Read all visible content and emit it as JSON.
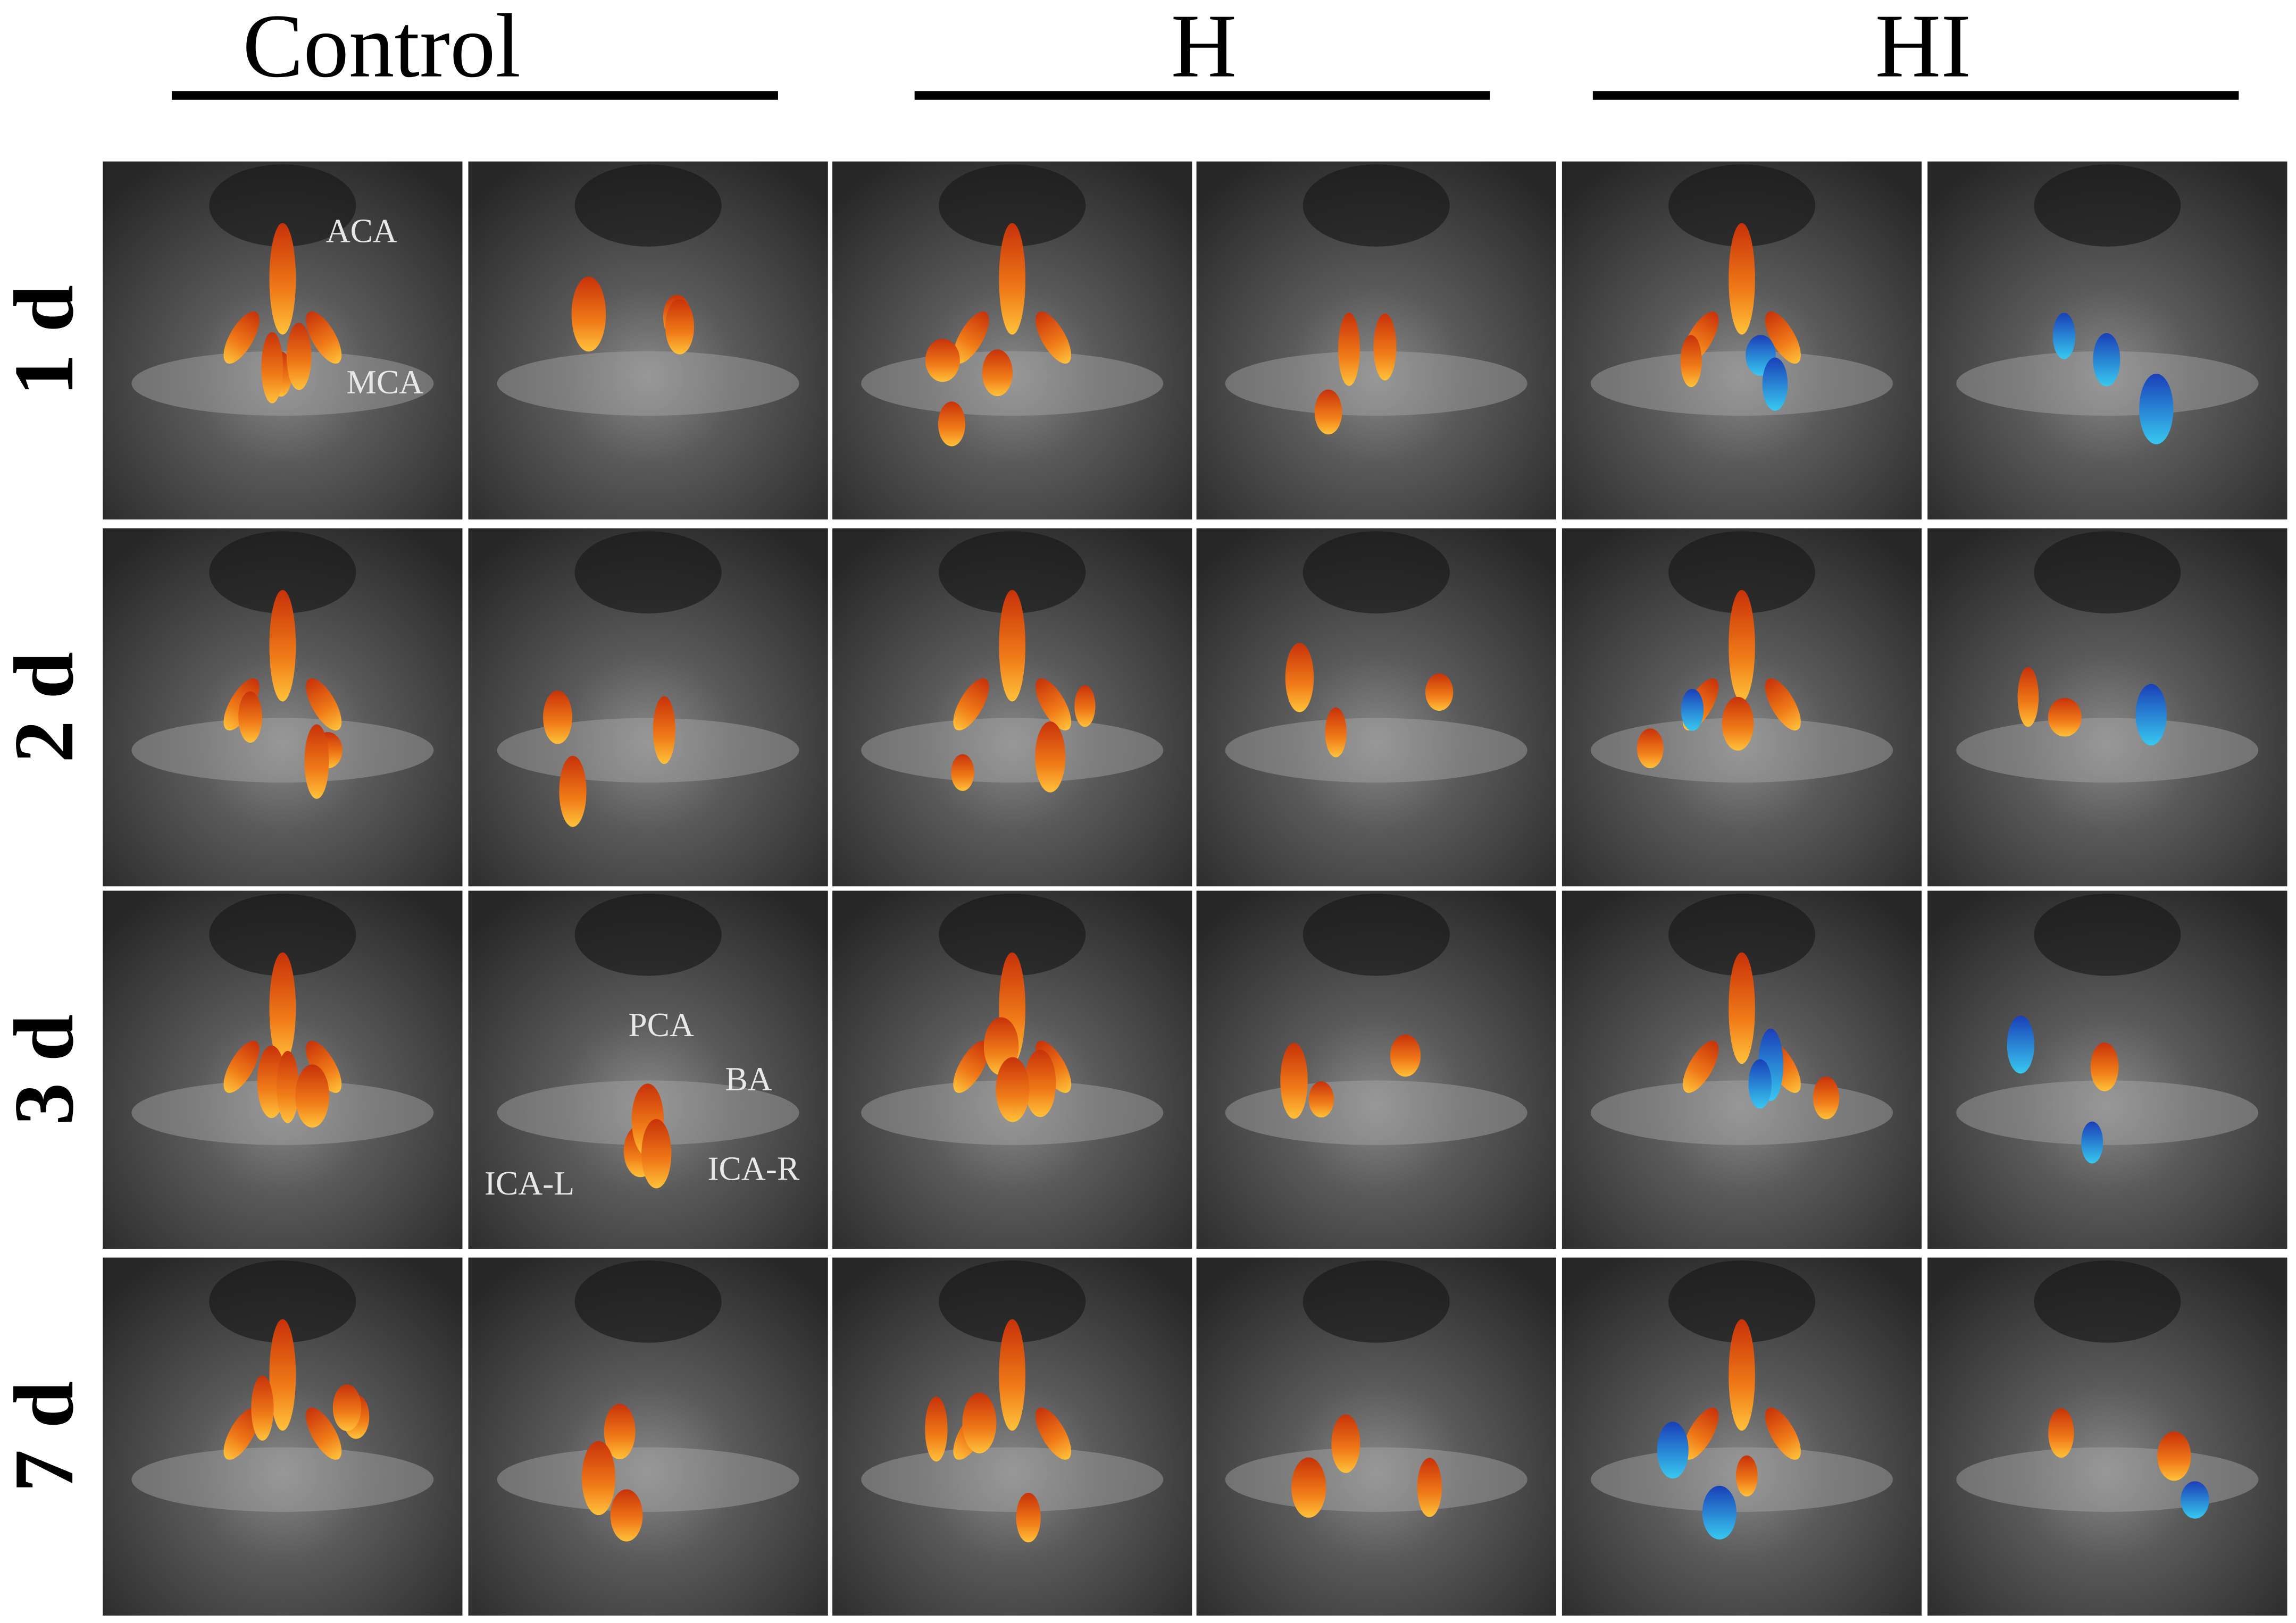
{
  "column_headers": [
    "Control",
    "H",
    "HI"
  ],
  "row_labels": [
    "1 d",
    "2 d",
    "3 d",
    "7 d"
  ],
  "annotations": [
    "ACA",
    "MCA",
    "PCA",
    "BA",
    "ICA-L",
    "ICA-R"
  ]
}
